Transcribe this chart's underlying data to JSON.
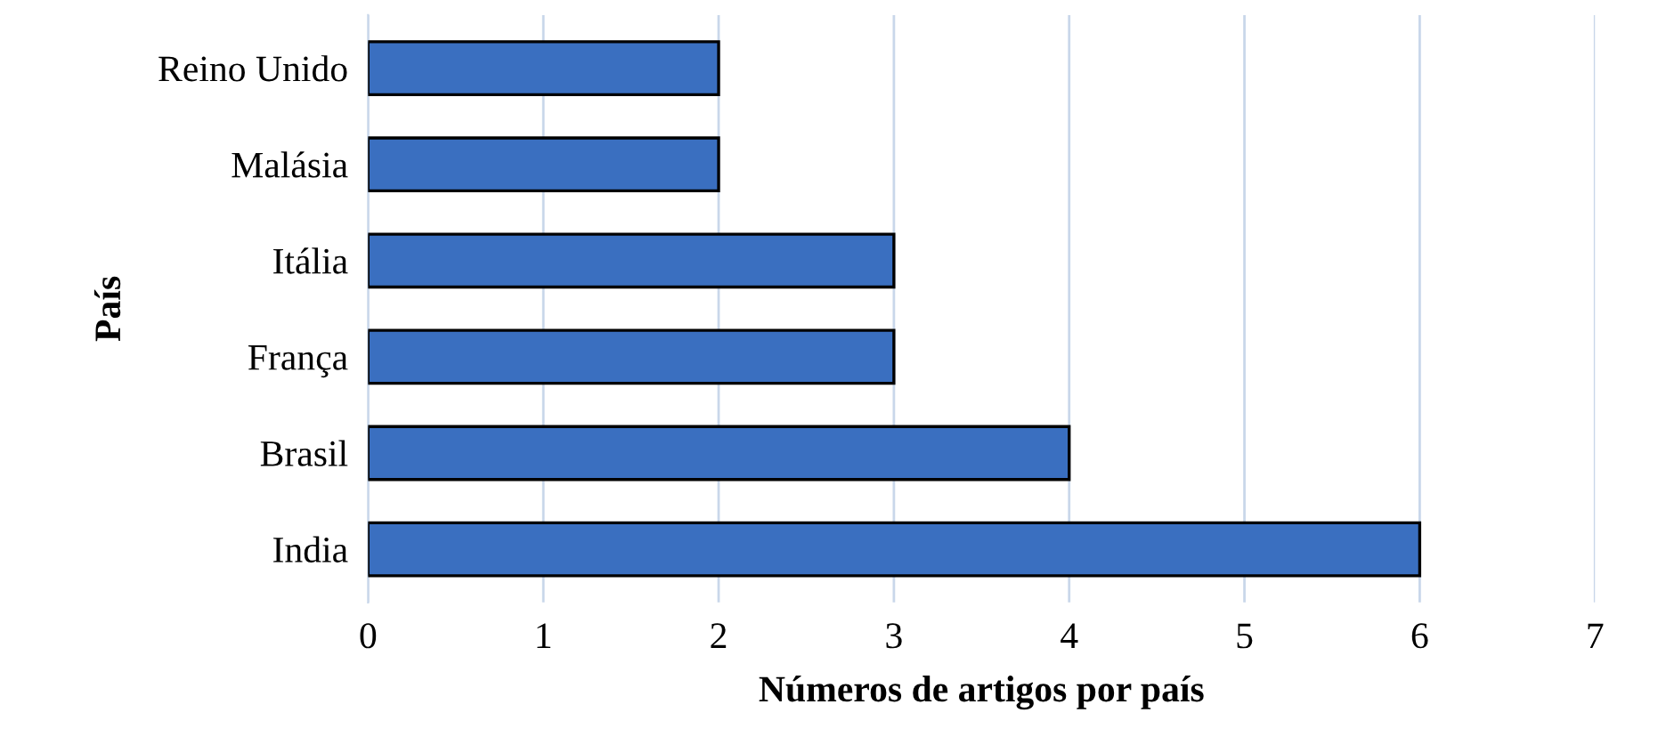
{
  "chart_data": {
    "type": "bar",
    "orientation": "horizontal",
    "categories": [
      "Reino Unido",
      "Malásia",
      "Itália",
      "França",
      "Brasil",
      "India"
    ],
    "values": [
      2,
      2,
      3,
      3,
      4,
      6
    ],
    "color": "#3a6fc0",
    "xlabel": "Números de artigos por país",
    "ylabel": "País",
    "xlim": [
      0,
      7
    ],
    "xticks": [
      0,
      1,
      2,
      3,
      4,
      5,
      6,
      7
    ],
    "grid": "x"
  }
}
